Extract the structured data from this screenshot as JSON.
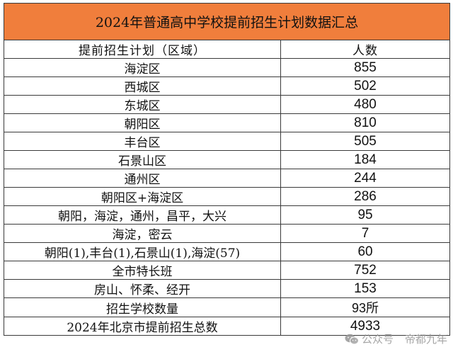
{
  "table": {
    "title": "2024年普通高中学校提前招生计划数据汇总",
    "header": {
      "region": "提前招生计划（区域）",
      "count": "人数"
    },
    "rows": [
      {
        "region": "海淀区",
        "count": "855"
      },
      {
        "region": "西城区",
        "count": "502"
      },
      {
        "region": "东城区",
        "count": "480"
      },
      {
        "region": "朝阳区",
        "count": "810"
      },
      {
        "region": "丰台区",
        "count": "505"
      },
      {
        "region": "石景山区",
        "count": "184"
      },
      {
        "region": "通州区",
        "count": "244"
      },
      {
        "region": "朝阳区+海淀区",
        "count": "286"
      },
      {
        "region": "朝阳，海淀，通州，昌平，大兴",
        "count": "95"
      },
      {
        "region": "海淀，密云",
        "count": "7"
      },
      {
        "region": "朝阳(1),丰台(1),石景山(1),海淀(57)",
        "count": "60"
      },
      {
        "region": "全市特长班",
        "count": "752"
      },
      {
        "region": "房山、怀柔、经开",
        "count": "153"
      },
      {
        "region": "招生学校数量",
        "count": "93所"
      },
      {
        "region": "2024年北京市提前招生总数",
        "count": "4933"
      }
    ]
  },
  "watermark": {
    "icon": "wechat-icon",
    "label": "公众号",
    "account": "帝都九年"
  },
  "colors": {
    "title_background": "#f07e3c",
    "grid_lines": "#3a3a3a"
  }
}
